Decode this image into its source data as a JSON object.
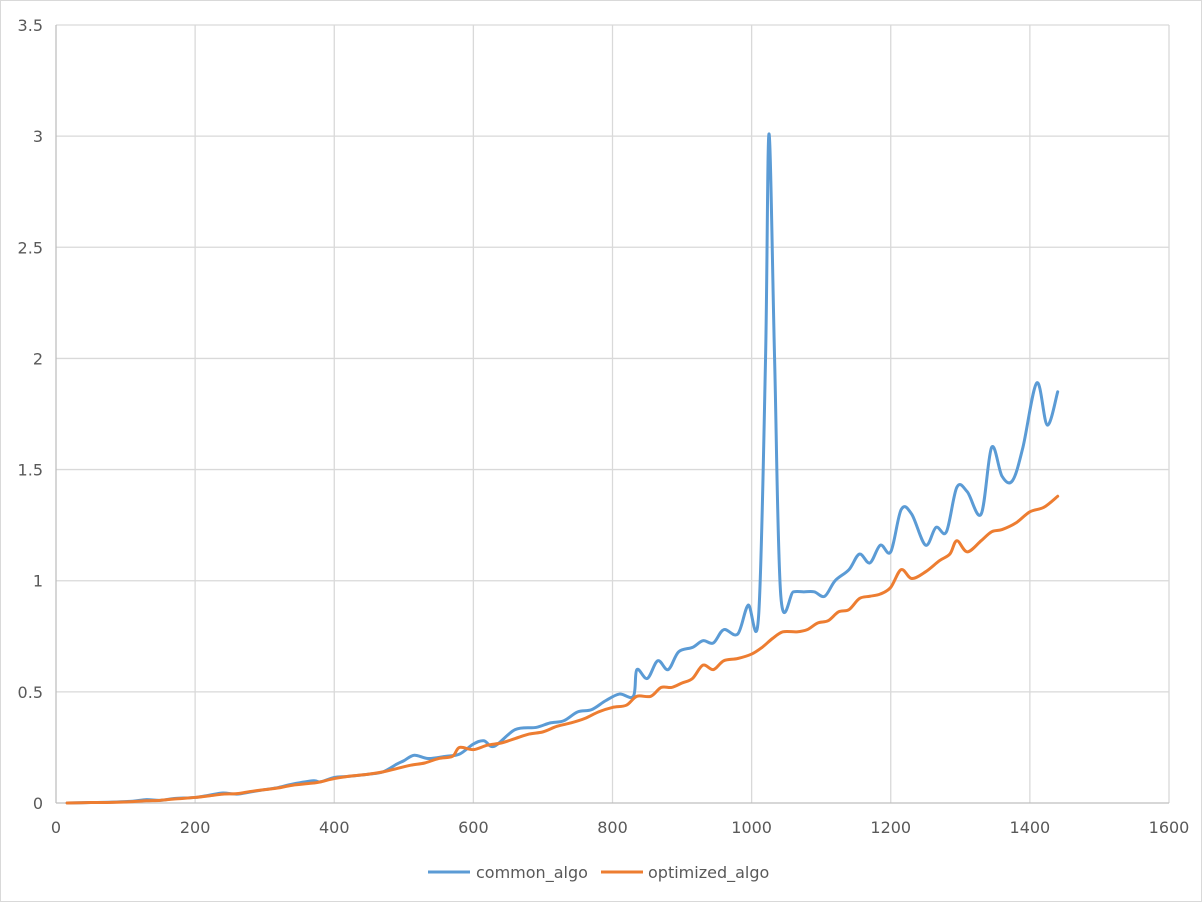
{
  "chart_data": {
    "type": "line",
    "title": "",
    "xlabel": "",
    "ylabel": "",
    "xlim": [
      0,
      1600
    ],
    "ylim": [
      0,
      3.5
    ],
    "x_ticks": [
      0,
      200,
      400,
      600,
      800,
      1000,
      1200,
      1400,
      1600
    ],
    "y_ticks": [
      0,
      0.5,
      1,
      1.5,
      2,
      2.5,
      3,
      3.5
    ],
    "x_tick_labels": [
      "0",
      "200",
      "400",
      "600",
      "800",
      "1000",
      "1200",
      "1400",
      "1600"
    ],
    "y_tick_labels": [
      "0",
      "0.5",
      "1",
      "1.5",
      "2",
      "2.5",
      "3",
      "3.5"
    ],
    "grid": true,
    "legend_position": "bottom",
    "series": [
      {
        "name": "common_algo",
        "color": "#5b9bd5",
        "points": [
          [
            16,
            0.0
          ],
          [
            50,
            0.002
          ],
          [
            80,
            0.004
          ],
          [
            110,
            0.008
          ],
          [
            130,
            0.015
          ],
          [
            150,
            0.012
          ],
          [
            170,
            0.02
          ],
          [
            200,
            0.025
          ],
          [
            220,
            0.035
          ],
          [
            240,
            0.045
          ],
          [
            260,
            0.04
          ],
          [
            280,
            0.05
          ],
          [
            300,
            0.06
          ],
          [
            320,
            0.07
          ],
          [
            340,
            0.085
          ],
          [
            370,
            0.1
          ],
          [
            380,
            0.095
          ],
          [
            400,
            0.115
          ],
          [
            420,
            0.12
          ],
          [
            450,
            0.13
          ],
          [
            470,
            0.14
          ],
          [
            490,
            0.175
          ],
          [
            500,
            0.19
          ],
          [
            515,
            0.215
          ],
          [
            535,
            0.2
          ],
          [
            560,
            0.21
          ],
          [
            580,
            0.22
          ],
          [
            600,
            0.265
          ],
          [
            615,
            0.28
          ],
          [
            630,
            0.255
          ],
          [
            660,
            0.33
          ],
          [
            690,
            0.34
          ],
          [
            710,
            0.36
          ],
          [
            730,
            0.37
          ],
          [
            750,
            0.41
          ],
          [
            770,
            0.42
          ],
          [
            790,
            0.46
          ],
          [
            810,
            0.49
          ],
          [
            830,
            0.48
          ],
          [
            835,
            0.6
          ],
          [
            850,
            0.56
          ],
          [
            865,
            0.64
          ],
          [
            880,
            0.6
          ],
          [
            895,
            0.68
          ],
          [
            915,
            0.7
          ],
          [
            930,
            0.73
          ],
          [
            945,
            0.72
          ],
          [
            960,
            0.78
          ],
          [
            980,
            0.76
          ],
          [
            995,
            0.89
          ],
          [
            1010,
            0.84
          ],
          [
            1020,
            2.0
          ],
          [
            1025,
            3.01
          ],
          [
            1033,
            2.0
          ],
          [
            1042,
            0.93
          ],
          [
            1060,
            0.95
          ],
          [
            1075,
            0.95
          ],
          [
            1090,
            0.95
          ],
          [
            1105,
            0.93
          ],
          [
            1120,
            1.0
          ],
          [
            1140,
            1.05
          ],
          [
            1155,
            1.12
          ],
          [
            1170,
            1.08
          ],
          [
            1185,
            1.16
          ],
          [
            1200,
            1.13
          ],
          [
            1215,
            1.32
          ],
          [
            1230,
            1.3
          ],
          [
            1250,
            1.16
          ],
          [
            1265,
            1.24
          ],
          [
            1280,
            1.22
          ],
          [
            1295,
            1.42
          ],
          [
            1310,
            1.4
          ],
          [
            1330,
            1.3
          ],
          [
            1345,
            1.6
          ],
          [
            1360,
            1.47
          ],
          [
            1375,
            1.45
          ],
          [
            1390,
            1.6
          ],
          [
            1410,
            1.89
          ],
          [
            1425,
            1.7
          ],
          [
            1440,
            1.85
          ]
        ]
      },
      {
        "name": "optimized_algo",
        "color": "#ed7d31",
        "points": [
          [
            16,
            0.0
          ],
          [
            50,
            0.002
          ],
          [
            80,
            0.003
          ],
          [
            110,
            0.006
          ],
          [
            130,
            0.01
          ],
          [
            150,
            0.012
          ],
          [
            170,
            0.018
          ],
          [
            200,
            0.025
          ],
          [
            220,
            0.032
          ],
          [
            240,
            0.04
          ],
          [
            260,
            0.042
          ],
          [
            280,
            0.052
          ],
          [
            300,
            0.06
          ],
          [
            320,
            0.068
          ],
          [
            340,
            0.08
          ],
          [
            370,
            0.09
          ],
          [
            380,
            0.095
          ],
          [
            400,
            0.11
          ],
          [
            420,
            0.12
          ],
          [
            450,
            0.13
          ],
          [
            470,
            0.14
          ],
          [
            490,
            0.155
          ],
          [
            510,
            0.17
          ],
          [
            530,
            0.18
          ],
          [
            550,
            0.2
          ],
          [
            570,
            0.21
          ],
          [
            580,
            0.25
          ],
          [
            600,
            0.24
          ],
          [
            620,
            0.26
          ],
          [
            640,
            0.27
          ],
          [
            660,
            0.29
          ],
          [
            680,
            0.31
          ],
          [
            700,
            0.32
          ],
          [
            720,
            0.345
          ],
          [
            740,
            0.36
          ],
          [
            760,
            0.38
          ],
          [
            780,
            0.41
          ],
          [
            800,
            0.43
          ],
          [
            820,
            0.44
          ],
          [
            835,
            0.48
          ],
          [
            855,
            0.48
          ],
          [
            870,
            0.52
          ],
          [
            885,
            0.52
          ],
          [
            900,
            0.54
          ],
          [
            915,
            0.56
          ],
          [
            930,
            0.62
          ],
          [
            945,
            0.6
          ],
          [
            960,
            0.64
          ],
          [
            980,
            0.65
          ],
          [
            1000,
            0.67
          ],
          [
            1015,
            0.7
          ],
          [
            1030,
            0.74
          ],
          [
            1045,
            0.77
          ],
          [
            1065,
            0.77
          ],
          [
            1080,
            0.78
          ],
          [
            1095,
            0.81
          ],
          [
            1110,
            0.82
          ],
          [
            1125,
            0.86
          ],
          [
            1140,
            0.87
          ],
          [
            1155,
            0.92
          ],
          [
            1170,
            0.93
          ],
          [
            1185,
            0.94
          ],
          [
            1200,
            0.97
          ],
          [
            1215,
            1.05
          ],
          [
            1230,
            1.01
          ],
          [
            1250,
            1.04
          ],
          [
            1270,
            1.09
          ],
          [
            1285,
            1.12
          ],
          [
            1295,
            1.18
          ],
          [
            1310,
            1.13
          ],
          [
            1330,
            1.18
          ],
          [
            1345,
            1.22
          ],
          [
            1360,
            1.23
          ],
          [
            1380,
            1.26
          ],
          [
            1400,
            1.31
          ],
          [
            1420,
            1.33
          ],
          [
            1440,
            1.38
          ]
        ]
      }
    ]
  }
}
